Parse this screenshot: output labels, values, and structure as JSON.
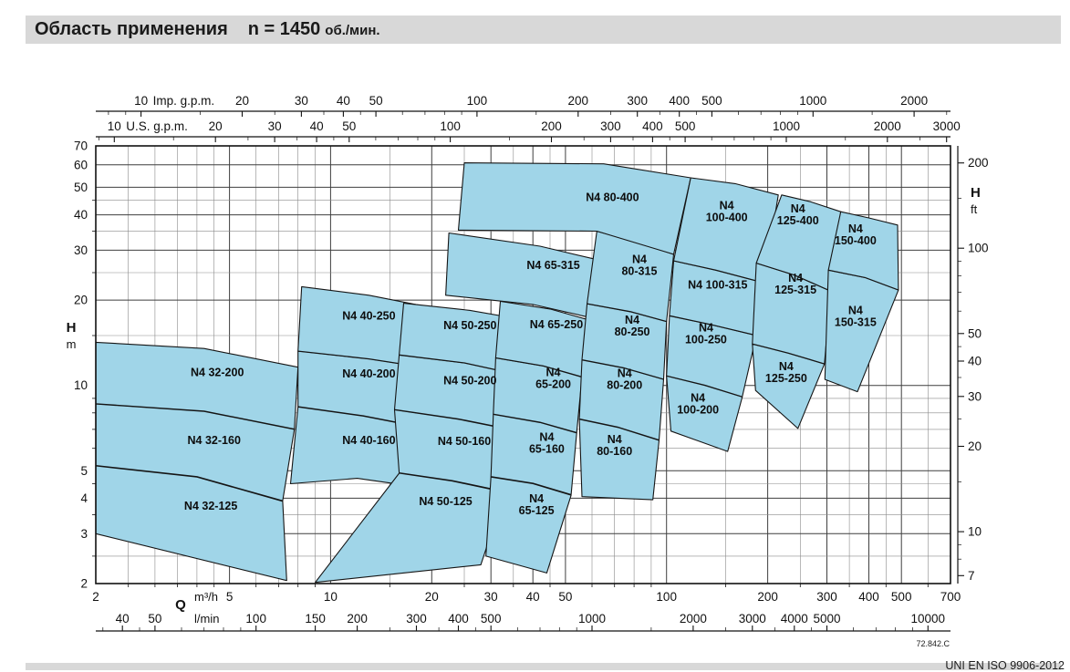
{
  "header": {
    "title": "Область применения",
    "speed": "n = 1450",
    "speed_unit": "об./мин."
  },
  "footer": {
    "drawing_code": "72.842.C",
    "standard": "UNI EN ISO 9906-2012"
  },
  "chart_data": {
    "type": "area",
    "title": "Область применения n = 1450 об./мин.",
    "xlabel": "Q",
    "ylabel": "H",
    "x_axis": {
      "label": "Q",
      "scale": "log",
      "range_m3h": [
        2,
        700
      ],
      "unit_m3h": "m³/h",
      "unit_lmin": "l/min",
      "m3h_ticks": [
        2,
        5,
        10,
        20,
        30,
        40,
        50,
        100,
        200,
        300,
        400,
        500,
        700
      ],
      "lmin_ticks": [
        40,
        50,
        100,
        150,
        200,
        300,
        400,
        500,
        1000,
        2000,
        3000,
        4000,
        5000,
        10000
      ],
      "imp_gpm_label": "Imp. g.p.m.",
      "imp_gpm_ticks": [
        10,
        20,
        30,
        40,
        50,
        100,
        200,
        300,
        400,
        500,
        1000,
        2000
      ],
      "us_gpm_label": "U.S. g.p.m.",
      "us_gpm_ticks": [
        10,
        20,
        30,
        40,
        50,
        100,
        200,
        300,
        400,
        500,
        1000,
        2000,
        3000
      ]
    },
    "y_axis": {
      "label": "H",
      "scale": "log",
      "range_m": [
        2,
        70
      ],
      "unit_m": "m",
      "unit_ft": "ft",
      "m_ticks": [
        2,
        3,
        4,
        5,
        10,
        20,
        30,
        40,
        50,
        60,
        70
      ],
      "ft_ticks": [
        7,
        10,
        20,
        30,
        40,
        50,
        100,
        200
      ]
    },
    "conversions": {
      "imp_gpm_per_m3h": 3.6661,
      "us_gpm_per_m3h": 4.4029,
      "lmin_per_m3h": 16.6667,
      "ft_per_m": 3.2808
    },
    "colors": {
      "fill": "#a0d5e8",
      "stroke": "#151515",
      "grid_minor": "#8a8a8a",
      "grid_major": "#3f3f3f",
      "axis": "#111111"
    },
    "regions": [
      {
        "label": "N4 32-125",
        "lines": [
          "N4 32-125"
        ],
        "points": [
          [
            2,
            5.2
          ],
          [
            4,
            4.75
          ],
          [
            7.2,
            3.9
          ],
          [
            7.4,
            2.05
          ],
          [
            2,
            3.0
          ]
        ],
        "label_at": [
          4.4,
          3.75
        ]
      },
      {
        "label": "N4 32-160",
        "lines": [
          "N4 32-160"
        ],
        "points": [
          [
            2,
            8.6
          ],
          [
            4.2,
            8.1
          ],
          [
            7.8,
            7.0
          ],
          [
            7.2,
            3.92
          ],
          [
            4,
            4.77
          ],
          [
            2,
            5.22
          ]
        ],
        "label_at": [
          4.5,
          6.4
        ]
      },
      {
        "label": "N4 32-200",
        "lines": [
          "N4 32-200"
        ],
        "points": [
          [
            2,
            14.2
          ],
          [
            4.2,
            13.5
          ],
          [
            8,
            11.6
          ],
          [
            7.8,
            7.02
          ],
          [
            4.2,
            8.12
          ],
          [
            2,
            8.62
          ]
        ],
        "label_at": [
          4.6,
          11.1
        ]
      },
      {
        "label": "N4 40-160",
        "lines": [
          "N4 40-160"
        ],
        "points": [
          [
            8,
            8.4
          ],
          [
            12.5,
            7.8
          ],
          [
            20,
            7.0
          ],
          [
            19,
            4.35
          ],
          [
            12,
            4.7
          ],
          [
            7.6,
            4.5
          ]
        ],
        "label_at": [
          13,
          6.4
        ]
      },
      {
        "label": "N4 40-200",
        "lines": [
          "N4 40-200"
        ],
        "points": [
          [
            8,
            13.2
          ],
          [
            13,
            12.4
          ],
          [
            20.5,
            11.4
          ],
          [
            20,
            7.02
          ],
          [
            12.5,
            7.82
          ],
          [
            8,
            8.42
          ]
        ],
        "label_at": [
          13,
          11.0
        ]
      },
      {
        "label": "N4 40-250",
        "lines": [
          "N4 40-250"
        ],
        "points": [
          [
            8.2,
            22.3
          ],
          [
            13,
            20.8
          ],
          [
            21,
            18.6
          ],
          [
            20.5,
            11.42
          ],
          [
            13,
            12.42
          ],
          [
            8,
            13.22
          ]
        ],
        "label_at": [
          13,
          17.6
        ]
      },
      {
        "label": "N4 50-125",
        "lines": [
          "N4 50-125"
        ],
        "points": [
          [
            16,
            4.9
          ],
          [
            23,
            4.6
          ],
          [
            33,
            4.2
          ],
          [
            28,
            2.33
          ],
          [
            9,
            2.02
          ]
        ],
        "label_at": [
          22,
          3.9
        ]
      },
      {
        "label": "N4 50-160",
        "lines": [
          "N4 50-160"
        ],
        "points": [
          [
            15.5,
            8.2
          ],
          [
            24,
            7.6
          ],
          [
            34,
            7.0
          ],
          [
            33,
            4.22
          ],
          [
            23,
            4.62
          ],
          [
            16,
            4.92
          ]
        ],
        "label_at": [
          25,
          6.35
        ]
      },
      {
        "label": "N4 50-200",
        "lines": [
          "N4 50-200"
        ],
        "points": [
          [
            16,
            12.8
          ],
          [
            25,
            12.0
          ],
          [
            35,
            11.0
          ],
          [
            34,
            7.02
          ],
          [
            24,
            7.62
          ],
          [
            15.5,
            8.22
          ]
        ],
        "label_at": [
          26,
          10.4
        ]
      },
      {
        "label": "N4 50-250",
        "lines": [
          "N4 50-250"
        ],
        "points": [
          [
            16.5,
            19.5
          ],
          [
            26,
            18.4
          ],
          [
            36,
            17.2
          ],
          [
            35,
            11.02
          ],
          [
            25,
            12.02
          ],
          [
            16,
            12.82
          ]
        ],
        "label_at": [
          26,
          16.3
        ]
      },
      {
        "label": "N4 65-125",
        "lines": [
          "N4",
          "65-125"
        ],
        "points": [
          [
            30,
            4.75
          ],
          [
            40,
            4.5
          ],
          [
            52,
            4.1
          ],
          [
            44,
            2.18
          ],
          [
            29,
            2.5
          ]
        ],
        "label_at": [
          41,
          3.8
        ]
      },
      {
        "label": "N4 65-160",
        "lines": [
          "N4",
          "65-160"
        ],
        "points": [
          [
            30.5,
            7.9
          ],
          [
            42,
            7.4
          ],
          [
            54,
            6.8
          ],
          [
            52,
            4.12
          ],
          [
            40,
            4.52
          ],
          [
            30,
            4.77
          ]
        ],
        "label_at": [
          44,
          6.25
        ]
      },
      {
        "label": "N4 65-200",
        "lines": [
          "N4",
          "65-200"
        ],
        "points": [
          [
            31,
            12.5
          ],
          [
            43,
            11.7
          ],
          [
            56,
            10.7
          ],
          [
            54,
            6.82
          ],
          [
            42,
            7.42
          ],
          [
            30.5,
            7.92
          ]
        ],
        "label_at": [
          46,
          10.6
        ]
      },
      {
        "label": "N4 65-250",
        "lines": [
          "N4 65-250"
        ],
        "points": [
          [
            32,
            19.8
          ],
          [
            45,
            18.6
          ],
          [
            58,
            17.1
          ],
          [
            56,
            10.72
          ],
          [
            43,
            11.72
          ],
          [
            31,
            12.52
          ]
        ],
        "label_at": [
          47,
          16.4
        ]
      },
      {
        "label": "N4 65-315",
        "lines": [
          "N4 65-315"
        ],
        "points": [
          [
            22.5,
            34.5
          ],
          [
            42,
            31
          ],
          [
            62,
            27.8
          ],
          [
            60,
            17.3
          ],
          [
            40,
            19.3
          ],
          [
            22,
            20.8
          ]
        ],
        "label_at": [
          46,
          26.5
        ]
      },
      {
        "label": "N4 80-160",
        "lines": [
          "N4",
          "80-160"
        ],
        "points": [
          [
            55,
            7.6
          ],
          [
            72,
            7.1
          ],
          [
            95,
            6.4
          ],
          [
            91,
            3.95
          ],
          [
            56,
            4.05
          ]
        ],
        "label_at": [
          70,
          6.15
        ]
      },
      {
        "label": "N4 80-200",
        "lines": [
          "N4",
          "80-200"
        ],
        "points": [
          [
            56,
            12.3
          ],
          [
            75,
            11.5
          ],
          [
            98,
            10.5
          ],
          [
            95,
            6.42
          ],
          [
            72,
            7.12
          ],
          [
            55,
            7.62
          ]
        ],
        "label_at": [
          75,
          10.5
        ]
      },
      {
        "label": "N4 80-250",
        "lines": [
          "N4",
          "80-250"
        ],
        "points": [
          [
            58,
            19.4
          ],
          [
            78,
            18.2
          ],
          [
            100,
            16.8
          ],
          [
            98,
            10.52
          ],
          [
            75,
            11.52
          ],
          [
            56,
            12.32
          ]
        ],
        "label_at": [
          79,
          16.2
        ]
      },
      {
        "label": "N4 80-315",
        "lines": [
          "N4",
          "80-315"
        ],
        "points": [
          [
            62,
            35
          ],
          [
            82,
            32
          ],
          [
            105,
            29
          ],
          [
            100,
            16.82
          ],
          [
            78,
            18.22
          ],
          [
            58,
            19.42
          ]
        ],
        "label_at": [
          83,
          26.5
        ]
      },
      {
        "label": "N4 80-400",
        "lines": [
          "N4 80-400"
        ],
        "points": [
          [
            25,
            61
          ],
          [
            65,
            60.5
          ],
          [
            118,
            54
          ],
          [
            105,
            29.02
          ],
          [
            62,
            35.02
          ],
          [
            24,
            35.3
          ]
        ],
        "label_at": [
          69,
          46
        ]
      },
      {
        "label": "N4 100-200",
        "lines": [
          "N4",
          "100-200"
        ],
        "points": [
          [
            100,
            10.8
          ],
          [
            130,
            10.0
          ],
          [
            168,
            9.1
          ],
          [
            152,
            5.85
          ],
          [
            103,
            6.9
          ]
        ],
        "label_at": [
          124,
          8.6
        ]
      },
      {
        "label": "N4 100-250",
        "lines": [
          "N4",
          "100-250"
        ],
        "points": [
          [
            102,
            17.6
          ],
          [
            135,
            16.4
          ],
          [
            185,
            15.0
          ],
          [
            168,
            9.12
          ],
          [
            130,
            10.02
          ],
          [
            100,
            10.82
          ]
        ],
        "label_at": [
          131,
          15.2
        ]
      },
      {
        "label": "N4 100-315",
        "lines": [
          "N4 100-315"
        ],
        "points": [
          [
            105,
            27.5
          ],
          [
            140,
            25.5
          ],
          [
            195,
            23.0
          ],
          [
            185,
            15.02
          ],
          [
            135,
            16.42
          ],
          [
            102,
            17.62
          ]
        ],
        "label_at": [
          142,
          22.6
        ]
      },
      {
        "label": "N4 100-400",
        "lines": [
          "N4",
          "100-400"
        ],
        "points": [
          [
            118,
            54
          ],
          [
            160,
            51.5
          ],
          [
            215,
            47
          ],
          [
            195,
            23.02
          ],
          [
            140,
            25.52
          ],
          [
            105,
            27.52
          ]
        ],
        "label_at": [
          151,
          41
        ]
      },
      {
        "label": "N4 125-250",
        "lines": [
          "N4",
          "125-250"
        ],
        "points": [
          [
            180,
            14.0
          ],
          [
            230,
            13.0
          ],
          [
            295,
            11.9
          ],
          [
            246,
            7.05
          ],
          [
            184,
            9.6
          ]
        ],
        "label_at": [
          227,
          11.1
        ]
      },
      {
        "label": "N4 125-315",
        "lines": [
          "N4",
          "125-315"
        ],
        "points": [
          [
            185,
            27
          ],
          [
            240,
            24.5
          ],
          [
            308,
            21.5
          ],
          [
            295,
            11.92
          ],
          [
            230,
            13.02
          ],
          [
            180,
            14.02
          ]
        ],
        "label_at": [
          242,
          22.8
        ]
      },
      {
        "label": "N4 125-400",
        "lines": [
          "N4",
          "125-400"
        ],
        "points": [
          [
            220,
            47
          ],
          [
            268,
            44.5
          ],
          [
            330,
            41
          ],
          [
            308,
            21.52
          ],
          [
            240,
            24.52
          ],
          [
            185,
            27.02
          ]
        ],
        "label_at": [
          246,
          40
        ]
      },
      {
        "label": "N4 150-315",
        "lines": [
          "N4",
          "150-315"
        ],
        "points": [
          [
            303,
            25.5
          ],
          [
            390,
            24
          ],
          [
            490,
            21.7
          ],
          [
            370,
            9.5
          ],
          [
            296,
            10.5
          ]
        ],
        "label_at": [
          365,
          17.5
        ]
      },
      {
        "label": "N4 150-400",
        "lines": [
          "N4",
          "150-400"
        ],
        "points": [
          [
            330,
            41
          ],
          [
            400,
            39
          ],
          [
            487,
            36.8
          ],
          [
            490,
            21.72
          ],
          [
            390,
            24.02
          ],
          [
            303,
            25.52
          ]
        ],
        "label_at": [
          365,
          34
        ]
      }
    ]
  }
}
